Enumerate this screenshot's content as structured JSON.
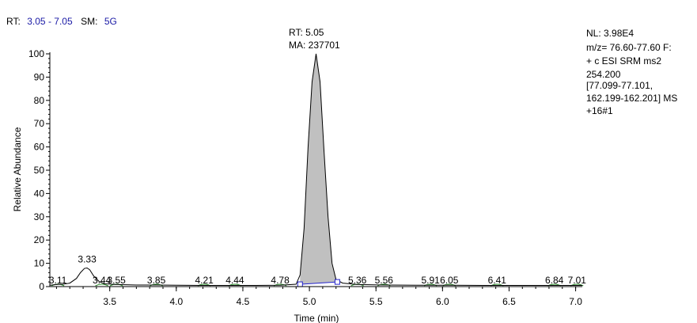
{
  "header": {
    "rt_label": "RT:",
    "rt_range": "3.05 - 7.05",
    "sm_label": "SM:",
    "sm_value": "5G"
  },
  "info_panel": {
    "lines": [
      "NL: 3.98E4",
      "m/z= 76.60-77.60 F:",
      "+ c ESI SRM ms2",
      "254.200",
      "[77.099-77.101,",
      "162.199-162.201]  MS",
      "+16#1"
    ]
  },
  "annotation": {
    "rt_line": "RT: 5.05",
    "ma_line": "MA: 237701"
  },
  "colors": {
    "trace": "#000000",
    "peak_fill": "#c0c0c0",
    "baseline": "#2222cc",
    "minor_peaks": "#2a8a2a",
    "header_value": "#1a1aa6"
  },
  "chart_data": {
    "type": "line",
    "xlabel": "Time (min)",
    "ylabel": "Relative Abundance",
    "xlim": [
      3.05,
      7.05
    ],
    "ylim": [
      0,
      100
    ],
    "x_ticks": [
      3.5,
      4.0,
      4.5,
      5.0,
      5.5,
      6.0,
      6.5,
      7.0
    ],
    "x_tick_labels": [
      "3.5",
      "4.0",
      "4.5",
      "5.0",
      "5.5",
      "6.0",
      "6.5",
      "7.0"
    ],
    "y_ticks": [
      0,
      10,
      20,
      30,
      40,
      50,
      60,
      70,
      80,
      90,
      100
    ],
    "y_tick_labels": [
      "0",
      "10",
      "20",
      "30",
      "40",
      "50",
      "60",
      "70",
      "80",
      "90",
      "100"
    ],
    "series": [
      {
        "x": [
          3.05,
          3.1,
          3.15,
          3.2,
          3.25,
          3.28,
          3.31,
          3.33,
          3.35,
          3.38,
          3.42,
          3.46,
          3.55,
          3.7,
          3.85,
          4.0,
          4.2,
          4.4,
          4.6,
          4.78,
          4.9,
          4.93,
          4.96,
          4.99,
          5.02,
          5.05,
          5.08,
          5.11,
          5.14,
          5.17,
          5.2,
          5.25,
          5.36,
          5.56,
          5.8,
          6.05,
          6.3,
          6.6,
          6.84,
          7.01,
          7.05
        ],
        "y": [
          0.6,
          0.9,
          1.0,
          1.5,
          3.5,
          6.0,
          7.8,
          8.0,
          7.2,
          4.5,
          2.2,
          1.2,
          0.9,
          0.7,
          0.7,
          0.6,
          0.5,
          0.5,
          0.5,
          0.6,
          1.0,
          5.0,
          25.0,
          60.0,
          88.0,
          100.0,
          88.0,
          58.0,
          30.0,
          10.0,
          3.0,
          1.5,
          0.9,
          0.7,
          0.6,
          0.6,
          0.5,
          0.5,
          0.5,
          0.5,
          0.5
        ]
      }
    ],
    "integrated_peak": {
      "x_start": 4.93,
      "x_end": 5.21,
      "baseline_y_start": 1.0,
      "baseline_y_end": 2.0
    },
    "peak_labels": [
      {
        "x": 3.11,
        "y": 1.0,
        "text": "3.11"
      },
      {
        "x": 3.33,
        "y": 8.0,
        "text": "3.33"
      },
      {
        "x": 3.44,
        "y": 1.3,
        "text": "3.44"
      },
      {
        "x": 3.55,
        "y": 0.9,
        "text": "3.55"
      },
      {
        "x": 3.85,
        "y": 0.8,
        "text": "3.85"
      },
      {
        "x": 4.21,
        "y": 0.6,
        "text": "4.21"
      },
      {
        "x": 4.44,
        "y": 0.6,
        "text": "4.44"
      },
      {
        "x": 4.78,
        "y": 0.6,
        "text": "4.78"
      },
      {
        "x": 5.36,
        "y": 1.0,
        "text": "5.36"
      },
      {
        "x": 5.56,
        "y": 0.8,
        "text": "5.56"
      },
      {
        "x": 5.91,
        "y": 0.6,
        "text": "5.91"
      },
      {
        "x": 6.05,
        "y": 0.6,
        "text": "6.05"
      },
      {
        "x": 6.41,
        "y": 0.6,
        "text": "6.41"
      },
      {
        "x": 6.84,
        "y": 0.6,
        "text": "6.84"
      },
      {
        "x": 7.01,
        "y": 0.6,
        "text": "7.01"
      }
    ]
  }
}
